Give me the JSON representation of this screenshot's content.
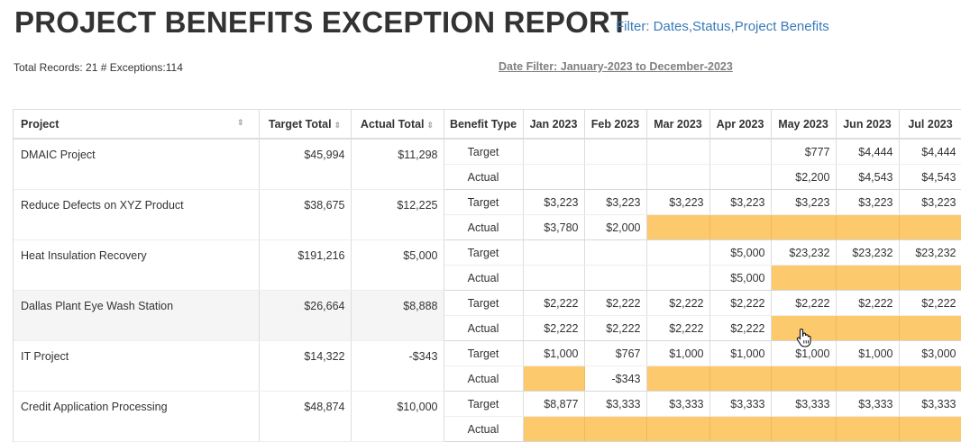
{
  "header": {
    "title": "PROJECT BENEFITS EXCEPTION REPORT",
    "filter_link": "Filter: Dates,Status,Project Benefits",
    "summary": "Total Records: 21 # Exceptions:114",
    "date_filter": "Date Filter: January-2023 to December-2023"
  },
  "table": {
    "columns": {
      "project": "Project",
      "target_total": "Target Total",
      "actual_total": "Actual Total",
      "benefit_type": "Benefit Type",
      "months": [
        "Jan 2023",
        "Feb 2023",
        "Mar 2023",
        "Apr 2023",
        "May 2023",
        "Jun 2023",
        "Jul 2023"
      ]
    },
    "sort_icon": "sort-icon",
    "exception_color": "#fcc96d",
    "rows": [
      {
        "project": "DMAIC Project",
        "target_total": "$45,994",
        "actual_total": "$11,298",
        "target": {
          "label": "Target",
          "values": [
            "",
            "",
            "",
            "",
            "$777",
            "$4,444",
            "$4,444"
          ],
          "exceptions": [
            false,
            false,
            false,
            false,
            false,
            false,
            false
          ]
        },
        "actual": {
          "label": "Actual",
          "values": [
            "",
            "",
            "",
            "",
            "$2,200",
            "$4,543",
            "$4,543"
          ],
          "exceptions": [
            false,
            false,
            false,
            false,
            false,
            false,
            false
          ]
        }
      },
      {
        "project": "Reduce Defects on XYZ Product",
        "target_total": "$38,675",
        "actual_total": "$12,225",
        "target": {
          "label": "Target",
          "values": [
            "$3,223",
            "$3,223",
            "$3,223",
            "$3,223",
            "$3,223",
            "$3,223",
            "$3,223"
          ],
          "exceptions": [
            false,
            false,
            false,
            false,
            false,
            false,
            false
          ]
        },
        "actual": {
          "label": "Actual",
          "values": [
            "$3,780",
            "$2,000",
            "",
            "",
            "",
            "",
            ""
          ],
          "exceptions": [
            false,
            false,
            true,
            true,
            true,
            true,
            true
          ]
        }
      },
      {
        "project": "Heat Insulation Recovery",
        "target_total": "$191,216",
        "actual_total": "$5,000",
        "target": {
          "label": "Target",
          "values": [
            "",
            "",
            "",
            "$5,000",
            "$23,232",
            "$23,232",
            "$23,232"
          ],
          "exceptions": [
            false,
            false,
            false,
            false,
            false,
            false,
            false
          ]
        },
        "actual": {
          "label": "Actual",
          "values": [
            "",
            "",
            "",
            "$5,000",
            "",
            "",
            ""
          ],
          "exceptions": [
            false,
            false,
            false,
            false,
            true,
            true,
            true
          ]
        }
      },
      {
        "project": "Dallas Plant Eye Wash Station",
        "target_total": "$26,664",
        "actual_total": "$8,888",
        "target": {
          "label": "Target",
          "values": [
            "$2,222",
            "$2,222",
            "$2,222",
            "$2,222",
            "$2,222",
            "$2,222",
            "$2,222"
          ],
          "exceptions": [
            false,
            false,
            false,
            false,
            false,
            false,
            false
          ]
        },
        "actual": {
          "label": "Actual",
          "values": [
            "$2,222",
            "$2,222",
            "$2,222",
            "$2,222",
            "",
            "",
            ""
          ],
          "exceptions": [
            false,
            false,
            false,
            false,
            true,
            true,
            true
          ]
        }
      },
      {
        "project": "IT Project",
        "target_total": "$14,322",
        "actual_total": "-$343",
        "target": {
          "label": "Target",
          "values": [
            "$1,000",
            "$767",
            "$1,000",
            "$1,000",
            "$1,000",
            "$1,000",
            "$3,000"
          ],
          "exceptions": [
            false,
            false,
            false,
            false,
            false,
            false,
            false
          ]
        },
        "actual": {
          "label": "Actual",
          "values": [
            "",
            "-$343",
            "",
            "",
            "",
            "",
            ""
          ],
          "exceptions": [
            true,
            false,
            true,
            true,
            true,
            true,
            true
          ]
        }
      },
      {
        "project": "Credit Application Processing",
        "target_total": "$48,874",
        "actual_total": "$10,000",
        "target": {
          "label": "Target",
          "values": [
            "$8,877",
            "$3,333",
            "$3,333",
            "$3,333",
            "$3,333",
            "$3,333",
            "$3,333"
          ],
          "exceptions": [
            false,
            false,
            false,
            false,
            false,
            false,
            false
          ]
        },
        "actual": {
          "label": "Actual",
          "values": [
            "",
            "",
            "",
            "",
            "",
            "",
            ""
          ],
          "exceptions": [
            true,
            true,
            true,
            true,
            true,
            true,
            true
          ]
        }
      }
    ]
  },
  "cursor": {
    "icon": "hand-pointer-icon"
  }
}
